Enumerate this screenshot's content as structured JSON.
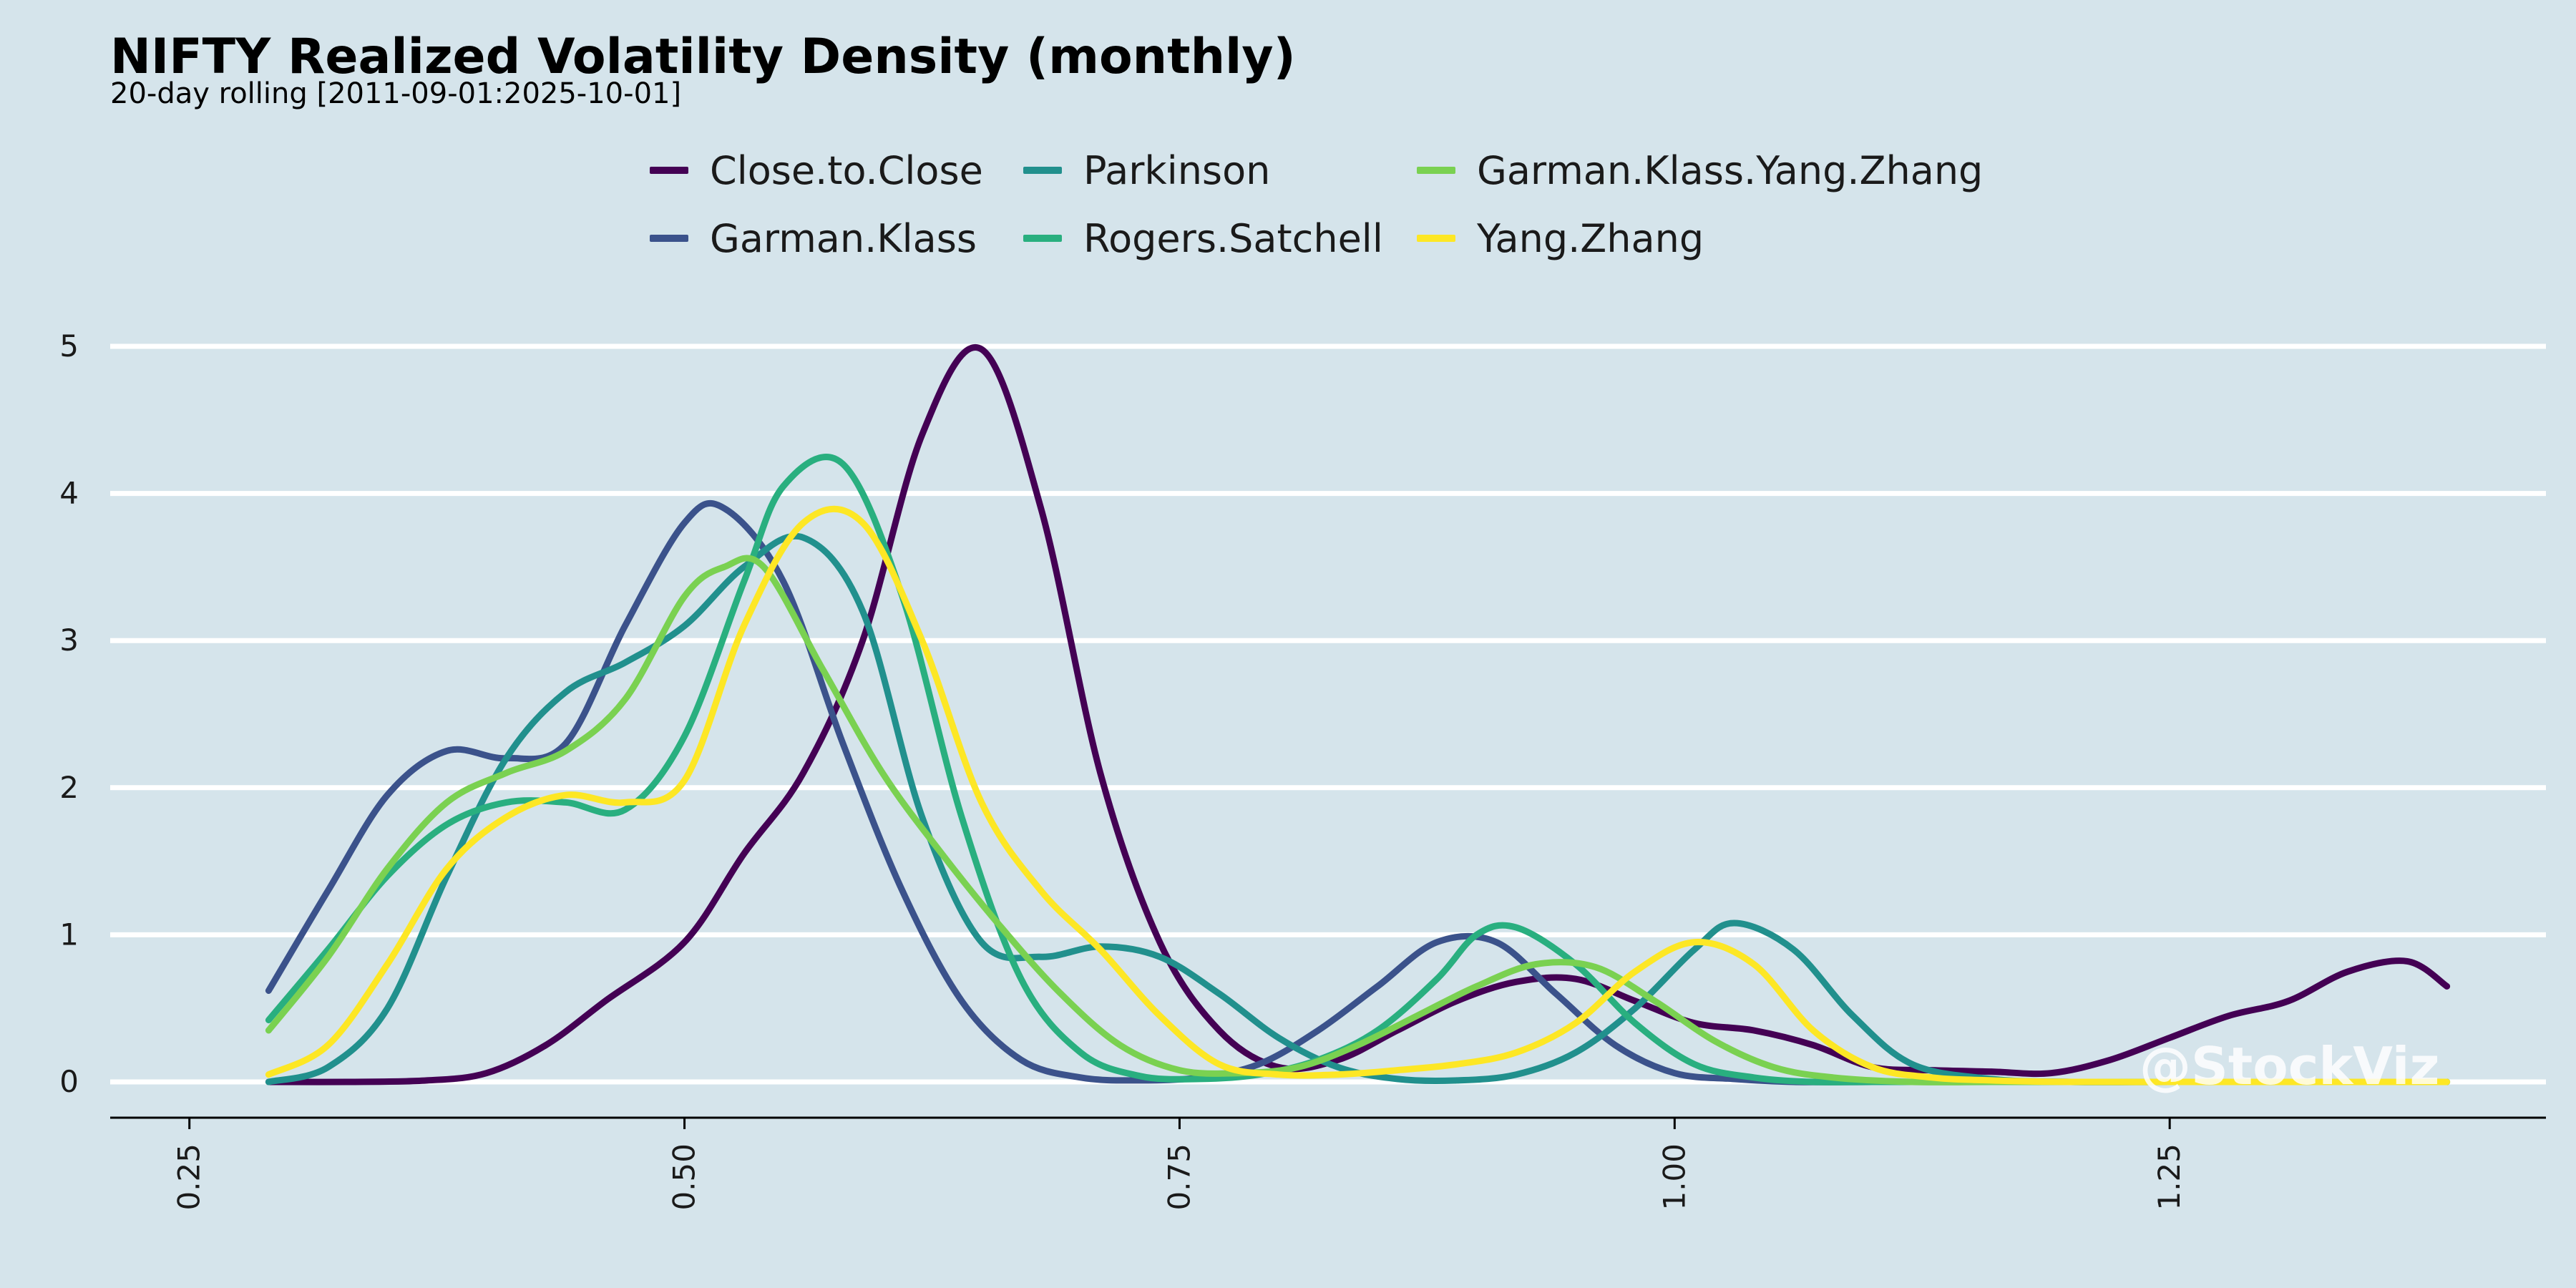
{
  "chart_data": {
    "type": "line",
    "title": "NIFTY Realized Volatility Density (monthly)",
    "subtitle": "20-day rolling [2011-09-01:2025-10-01]",
    "xlabel": "",
    "ylabel": "",
    "xlim": [
      0.21,
      1.44
    ],
    "ylim": [
      -0.24,
      5.0
    ],
    "x_ticks": [
      0.25,
      0.5,
      0.75,
      1.0,
      1.25
    ],
    "x_tick_labels": [
      "0.25",
      "0.50",
      "0.75",
      "1.00",
      "1.25"
    ],
    "y_ticks": [
      0,
      1,
      2,
      3,
      4,
      5
    ],
    "y_tick_labels": [
      "0",
      "1",
      "2",
      "3",
      "4",
      "5"
    ],
    "grid": "horizontal",
    "legend_position": "top",
    "watermark": "@StockViz",
    "series": [
      {
        "name": "Close.to.Close",
        "color": "#440154",
        "x": [
          0.29,
          0.33,
          0.37,
          0.4,
          0.43,
          0.46,
          0.5,
          0.53,
          0.56,
          0.59,
          0.62,
          0.65,
          0.68,
          0.71,
          0.74,
          0.77,
          0.8,
          0.83,
          0.86,
          0.89,
          0.92,
          0.95,
          0.98,
          1.01,
          1.04,
          1.07,
          1.1,
          1.13,
          1.16,
          1.19,
          1.22,
          1.25,
          1.28,
          1.31,
          1.34,
          1.37,
          1.39
        ],
        "y": [
          0.0,
          0.0,
          0.01,
          0.06,
          0.25,
          0.55,
          0.95,
          1.55,
          2.1,
          3.0,
          4.4,
          4.98,
          3.9,
          2.1,
          0.95,
          0.35,
          0.1,
          0.15,
          0.35,
          0.55,
          0.68,
          0.7,
          0.55,
          0.4,
          0.35,
          0.25,
          0.1,
          0.08,
          0.07,
          0.06,
          0.15,
          0.3,
          0.45,
          0.55,
          0.75,
          0.82,
          0.65
        ]
      },
      {
        "name": "Garman.Klass",
        "color": "#3b528b",
        "x": [
          0.29,
          0.32,
          0.35,
          0.38,
          0.41,
          0.44,
          0.47,
          0.5,
          0.52,
          0.55,
          0.58,
          0.61,
          0.64,
          0.67,
          0.7,
          0.73,
          0.76,
          0.79,
          0.82,
          0.85,
          0.88,
          0.91,
          0.94,
          0.97,
          1.0,
          1.03,
          1.06,
          1.1,
          1.15,
          1.2,
          1.25,
          1.3,
          1.35,
          1.39
        ],
        "y": [
          0.62,
          1.3,
          1.95,
          2.25,
          2.2,
          2.3,
          3.1,
          3.8,
          3.9,
          3.4,
          2.3,
          1.3,
          0.55,
          0.15,
          0.03,
          0.01,
          0.03,
          0.12,
          0.35,
          0.65,
          0.95,
          0.95,
          0.6,
          0.25,
          0.06,
          0.02,
          0.0,
          0.0,
          0.0,
          0.0,
          0.0,
          0.0,
          0.0,
          0.0
        ]
      },
      {
        "name": "Parkinson",
        "color": "#21908d",
        "x": [
          0.29,
          0.32,
          0.35,
          0.38,
          0.41,
          0.44,
          0.47,
          0.5,
          0.53,
          0.56,
          0.59,
          0.62,
          0.65,
          0.68,
          0.71,
          0.74,
          0.77,
          0.8,
          0.83,
          0.86,
          0.89,
          0.92,
          0.95,
          0.98,
          1.01,
          1.03,
          1.06,
          1.09,
          1.12,
          1.16,
          1.2,
          1.25,
          1.3,
          1.35,
          1.39
        ],
        "y": [
          0.0,
          0.1,
          0.5,
          1.4,
          2.2,
          2.65,
          2.85,
          3.1,
          3.5,
          3.7,
          3.2,
          1.8,
          0.95,
          0.85,
          0.92,
          0.85,
          0.6,
          0.3,
          0.1,
          0.02,
          0.01,
          0.05,
          0.2,
          0.5,
          0.9,
          1.08,
          0.9,
          0.45,
          0.12,
          0.02,
          0.0,
          0.0,
          0.0,
          0.0,
          0.0
        ]
      },
      {
        "name": "Rogers.Satchell",
        "color": "#29af7f",
        "x": [
          0.29,
          0.32,
          0.35,
          0.38,
          0.41,
          0.44,
          0.47,
          0.5,
          0.53,
          0.55,
          0.58,
          0.61,
          0.64,
          0.67,
          0.7,
          0.73,
          0.76,
          0.79,
          0.82,
          0.85,
          0.88,
          0.9,
          0.92,
          0.95,
          0.98,
          1.01,
          1.04,
          1.07,
          1.1,
          1.15,
          1.2,
          1.25,
          1.3,
          1.35,
          1.39
        ],
        "y": [
          0.42,
          0.9,
          1.4,
          1.75,
          1.9,
          1.9,
          1.85,
          2.35,
          3.4,
          4.05,
          4.2,
          3.3,
          1.8,
          0.7,
          0.2,
          0.04,
          0.02,
          0.05,
          0.15,
          0.35,
          0.7,
          1.0,
          1.05,
          0.8,
          0.4,
          0.12,
          0.03,
          0.0,
          0.0,
          0.0,
          0.0,
          0.0,
          0.0,
          0.0,
          0.0
        ]
      },
      {
        "name": "Garman.Klass.Yang.Zhang",
        "color": "#7ad151",
        "x": [
          0.29,
          0.32,
          0.35,
          0.38,
          0.41,
          0.44,
          0.47,
          0.5,
          0.52,
          0.54,
          0.57,
          0.6,
          0.63,
          0.66,
          0.69,
          0.72,
          0.75,
          0.78,
          0.81,
          0.84,
          0.87,
          0.9,
          0.93,
          0.96,
          0.99,
          1.02,
          1.05,
          1.08,
          1.12,
          1.16,
          1.2,
          1.25,
          1.3,
          1.35,
          1.39
        ],
        "y": [
          0.35,
          0.85,
          1.45,
          1.9,
          2.1,
          2.25,
          2.6,
          3.3,
          3.5,
          3.5,
          2.8,
          2.1,
          1.55,
          1.05,
          0.6,
          0.25,
          0.08,
          0.06,
          0.1,
          0.25,
          0.45,
          0.65,
          0.8,
          0.78,
          0.55,
          0.28,
          0.1,
          0.03,
          0.0,
          0.0,
          0.0,
          0.0,
          0.0,
          0.0,
          0.0
        ]
      },
      {
        "name": "Yang.Zhang",
        "color": "#fde725",
        "x": [
          0.29,
          0.32,
          0.35,
          0.38,
          0.41,
          0.44,
          0.47,
          0.5,
          0.53,
          0.56,
          0.59,
          0.62,
          0.65,
          0.68,
          0.71,
          0.74,
          0.77,
          0.8,
          0.83,
          0.86,
          0.89,
          0.92,
          0.95,
          0.98,
          1.01,
          1.04,
          1.07,
          1.1,
          1.13,
          1.16,
          1.2,
          1.25,
          1.3,
          1.35,
          1.39
        ],
        "y": [
          0.05,
          0.25,
          0.8,
          1.45,
          1.8,
          1.95,
          1.9,
          2.05,
          3.1,
          3.8,
          3.8,
          3.0,
          1.9,
          1.3,
          0.9,
          0.45,
          0.12,
          0.05,
          0.05,
          0.08,
          0.12,
          0.2,
          0.4,
          0.75,
          0.95,
          0.8,
          0.35,
          0.1,
          0.03,
          0.01,
          0.0,
          0.0,
          0.0,
          0.0,
          0.0
        ]
      }
    ]
  }
}
